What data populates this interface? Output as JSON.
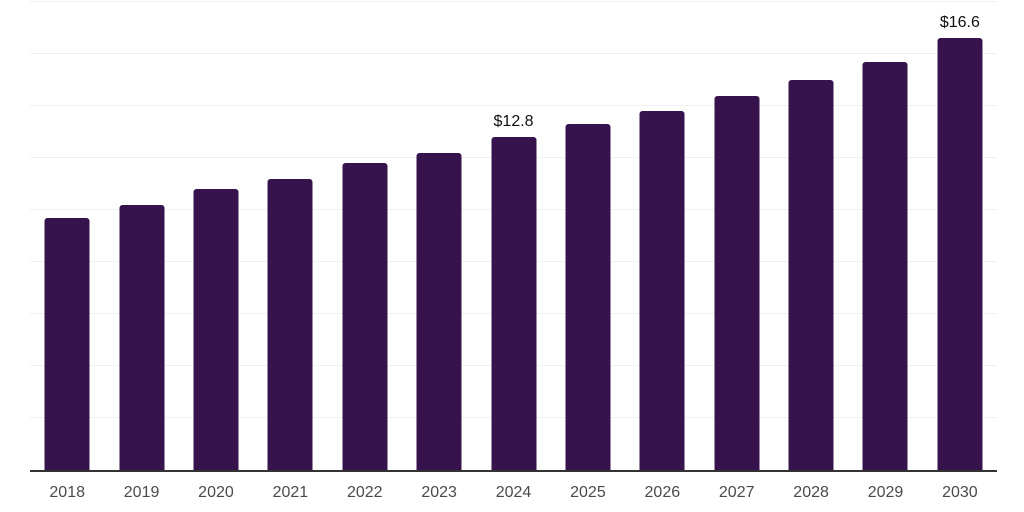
{
  "chart_data": {
    "type": "bar",
    "title": "",
    "xlabel": "",
    "ylabel": "",
    "categories": [
      "2018",
      "2019",
      "2020",
      "2021",
      "2022",
      "2023",
      "2024",
      "2025",
      "2026",
      "2027",
      "2028",
      "2029",
      "2030"
    ],
    "values": [
      9.7,
      10.2,
      10.8,
      11.2,
      11.8,
      12.2,
      12.8,
      13.3,
      13.8,
      14.4,
      15.0,
      15.7,
      16.6
    ],
    "bar_labels": [
      "",
      "",
      "",
      "",
      "",
      "",
      "$12.8",
      "",
      "",
      "",
      "",
      "",
      "$16.6"
    ],
    "ylim": [
      0,
      18
    ],
    "gridline_step": 2,
    "grid": true,
    "y_tick_labels_shown": false,
    "legend_position": "none",
    "colors": {
      "bar": "#37134d",
      "gridline": "#f0f0f0",
      "axis_line": "#333333",
      "tick_label": "#4a4a4a",
      "data_label": "#111111",
      "background": "#ffffff"
    }
  }
}
